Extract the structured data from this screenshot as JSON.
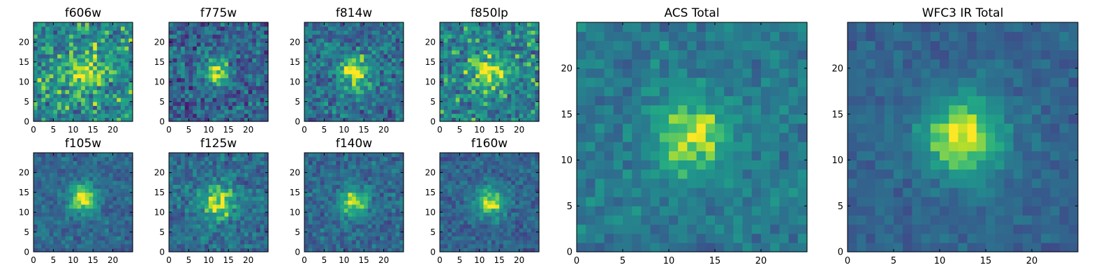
{
  "chart_data": [
    {
      "type": "heatmap",
      "title": "f606w",
      "xticks": [
        0,
        5,
        10,
        15,
        20
      ],
      "yticks": [
        0,
        5,
        10,
        15,
        20
      ],
      "xlim": [
        0,
        25
      ],
      "ylim": [
        0,
        25
      ],
      "grid_size": 25,
      "colormap": "viridis",
      "peak": [
        12,
        12
      ],
      "peak_sigma": 3.0,
      "peak_strength": 0.35,
      "baseline": 0.6,
      "noise": 0.38,
      "seed": 11
    },
    {
      "type": "heatmap",
      "title": "f775w",
      "xticks": [
        0,
        5,
        10,
        15,
        20
      ],
      "yticks": [
        0,
        5,
        10,
        15,
        20
      ],
      "xlim": [
        0,
        25
      ],
      "ylim": [
        0,
        25
      ],
      "grid_size": 25,
      "colormap": "viridis",
      "peak": [
        11,
        12
      ],
      "peak_sigma": 2.2,
      "peak_strength": 0.6,
      "baseline": 0.4,
      "noise": 0.34,
      "seed": 23
    },
    {
      "type": "heatmap",
      "title": "f814w",
      "xticks": [
        0,
        5,
        10,
        15,
        20
      ],
      "yticks": [
        0,
        5,
        10,
        15,
        20
      ],
      "xlim": [
        0,
        25
      ],
      "ylim": [
        0,
        25
      ],
      "grid_size": 25,
      "colormap": "viridis",
      "peak": [
        12,
        12
      ],
      "peak_sigma": 3.0,
      "peak_strength": 0.55,
      "baseline": 0.45,
      "noise": 0.32,
      "seed": 37
    },
    {
      "type": "heatmap",
      "title": "f850lp",
      "xticks": [
        0,
        5,
        10,
        15,
        20
      ],
      "yticks": [
        0,
        5,
        10,
        15,
        20
      ],
      "xlim": [
        0,
        25
      ],
      "ylim": [
        0,
        25
      ],
      "grid_size": 25,
      "colormap": "viridis",
      "peak": [
        12,
        12
      ],
      "peak_sigma": 3.2,
      "peak_strength": 0.4,
      "baseline": 0.55,
      "noise": 0.36,
      "seed": 41
    },
    {
      "type": "heatmap",
      "title": "f105w",
      "xticks": [
        0,
        5,
        10,
        15,
        20
      ],
      "yticks": [
        0,
        5,
        10,
        15,
        20
      ],
      "xlim": [
        0,
        25
      ],
      "ylim": [
        0,
        25
      ],
      "grid_size": 25,
      "colormap": "viridis",
      "peak": [
        12,
        13
      ],
      "peak_sigma": 2.6,
      "peak_strength": 0.6,
      "baseline": 0.42,
      "noise": 0.2,
      "seed": 53
    },
    {
      "type": "heatmap",
      "title": "f125w",
      "xticks": [
        0,
        5,
        10,
        15,
        20
      ],
      "yticks": [
        0,
        5,
        10,
        15,
        20
      ],
      "xlim": [
        0,
        25
      ],
      "ylim": [
        0,
        25
      ],
      "grid_size": 25,
      "colormap": "viridis",
      "peak": [
        12,
        12
      ],
      "peak_sigma": 3.2,
      "peak_strength": 0.5,
      "baseline": 0.45,
      "noise": 0.24,
      "seed": 67
    },
    {
      "type": "heatmap",
      "title": "f140w",
      "xticks": [
        0,
        5,
        10,
        15,
        20
      ],
      "yticks": [
        0,
        5,
        10,
        15,
        20
      ],
      "xlim": [
        0,
        25
      ],
      "ylim": [
        0,
        25
      ],
      "grid_size": 25,
      "colormap": "viridis",
      "peak": [
        12,
        12
      ],
      "peak_sigma": 2.6,
      "peak_strength": 0.55,
      "baseline": 0.42,
      "noise": 0.22,
      "seed": 79
    },
    {
      "type": "heatmap",
      "title": "f160w",
      "xticks": [
        0,
        5,
        10,
        15,
        20
      ],
      "yticks": [
        0,
        5,
        10,
        15,
        20
      ],
      "xlim": [
        0,
        25
      ],
      "ylim": [
        0,
        25
      ],
      "grid_size": 25,
      "colormap": "viridis",
      "peak": [
        12,
        12
      ],
      "peak_sigma": 2.7,
      "peak_strength": 0.55,
      "baseline": 0.4,
      "noise": 0.2,
      "seed": 83
    },
    {
      "type": "heatmap",
      "title": "ACS Total",
      "xticks": [
        0,
        5,
        10,
        15,
        20
      ],
      "yticks": [
        0,
        5,
        10,
        15,
        20
      ],
      "xlim": [
        0,
        25
      ],
      "ylim": [
        0,
        25
      ],
      "grid_size": 25,
      "colormap": "viridis",
      "peak": [
        12,
        12
      ],
      "peak_sigma": 3.0,
      "peak_strength": 0.45,
      "baseline": 0.5,
      "noise": 0.18,
      "seed": 97
    },
    {
      "type": "heatmap",
      "title": "WFC3 IR Total",
      "xticks": [
        0,
        5,
        10,
        15,
        20
      ],
      "yticks": [
        0,
        5,
        10,
        15,
        20
      ],
      "xlim": [
        0,
        25
      ],
      "ylim": [
        0,
        25
      ],
      "grid_size": 25,
      "colormap": "viridis",
      "peak": [
        12,
        12
      ],
      "peak_sigma": 3.2,
      "peak_strength": 0.6,
      "baseline": 0.4,
      "noise": 0.13,
      "seed": 101
    }
  ]
}
